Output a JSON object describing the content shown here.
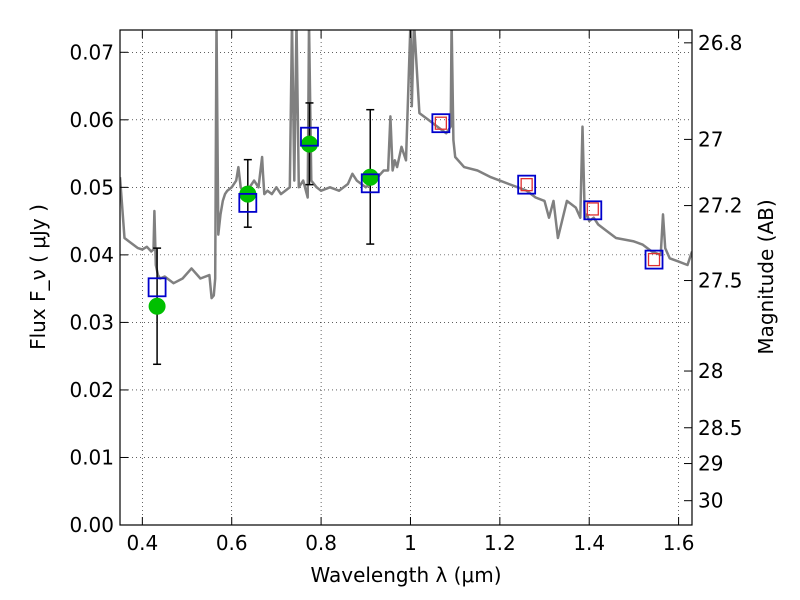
{
  "chart_data": {
    "type": "scatter",
    "xlabel": "Wavelength  λ (μm)",
    "ylabel": "Flux  F_ν  ( μJy )",
    "ylabel_right": "Magnitude (AB)",
    "xlim": [
      0.35,
      1.63
    ],
    "ylim": [
      0.0,
      0.0733
    ],
    "grid": true,
    "xticks": [
      0.4,
      0.6,
      0.8,
      1.0,
      1.2,
      1.4,
      1.6
    ],
    "xtick_labels": [
      "0.4",
      "0.6",
      "0.8",
      "1",
      "1.2",
      "1.4",
      "1.6"
    ],
    "yticks": [
      0.0,
      0.01,
      0.02,
      0.03,
      0.04,
      0.05,
      0.06,
      0.07
    ],
    "ytick_labels": [
      "0.00",
      "0.01",
      "0.02",
      "0.03",
      "0.04",
      "0.05",
      "0.06",
      "0.07"
    ],
    "right_ticks": [
      {
        "label": "26.8",
        "flux": 0.0714
      },
      {
        "label": "27",
        "flux": 0.0571
      },
      {
        "label": "27.2",
        "flux": 0.0473
      },
      {
        "label": "27.5",
        "flux": 0.0362
      },
      {
        "label": "28",
        "flux": 0.0228
      },
      {
        "label": "28.5",
        "flux": 0.0144
      },
      {
        "label": "29",
        "flux": 0.0091
      },
      {
        "label": "30",
        "flux": 0.0036
      }
    ],
    "series": [
      {
        "kind": "line",
        "color": "#808080",
        "x": [
          0.35,
          0.36,
          0.37,
          0.38,
          0.39,
          0.4,
          0.41,
          0.42,
          0.425,
          0.427,
          0.43,
          0.435,
          0.44,
          0.45,
          0.47,
          0.49,
          0.51,
          0.53,
          0.55,
          0.555,
          0.56,
          0.563,
          0.566,
          0.57,
          0.575,
          0.58,
          0.585,
          0.59,
          0.6,
          0.61,
          0.615,
          0.62,
          0.63,
          0.64,
          0.65,
          0.66,
          0.668,
          0.67,
          0.673,
          0.68,
          0.69,
          0.7,
          0.71,
          0.72,
          0.73,
          0.735,
          0.74,
          0.745,
          0.75,
          0.76,
          0.77,
          0.773,
          0.778,
          0.79,
          0.8,
          0.82,
          0.84,
          0.86,
          0.87,
          0.88,
          0.9,
          0.92,
          0.94,
          0.95,
          0.955,
          0.96,
          0.965,
          0.97,
          0.98,
          0.99,
          1.0,
          1.003,
          1.008,
          1.02,
          1.04,
          1.06,
          1.08,
          1.09,
          1.092,
          1.096,
          1.1,
          1.12,
          1.15,
          1.18,
          1.2,
          1.22,
          1.24,
          1.26,
          1.28,
          1.3,
          1.31,
          1.32,
          1.33,
          1.35,
          1.37,
          1.38,
          1.385,
          1.39,
          1.395,
          1.4,
          1.41,
          1.42,
          1.43,
          1.46,
          1.5,
          1.52,
          1.54,
          1.56,
          1.565,
          1.57,
          1.58,
          1.6,
          1.62,
          1.63
        ],
        "y": [
          0.0515,
          0.0425,
          0.042,
          0.0415,
          0.041,
          0.0408,
          0.0412,
          0.0405,
          0.0408,
          0.0465,
          0.0385,
          0.037,
          0.0365,
          0.0368,
          0.0358,
          0.0365,
          0.038,
          0.0365,
          0.037,
          0.0336,
          0.034,
          0.0365,
          0.0745,
          0.043,
          0.046,
          0.048,
          0.049,
          0.0495,
          0.05,
          0.051,
          0.053,
          0.05,
          0.049,
          0.05,
          0.051,
          0.05,
          0.0545,
          0.052,
          0.049,
          0.0495,
          0.049,
          0.05,
          0.049,
          0.0495,
          0.05,
          0.0745,
          0.051,
          0.0745,
          0.05,
          0.051,
          0.0485,
          0.0745,
          0.051,
          0.05,
          0.0495,
          0.05,
          0.0495,
          0.0505,
          0.052,
          0.051,
          0.05,
          0.051,
          0.0525,
          0.0525,
          0.0605,
          0.0525,
          0.054,
          0.053,
          0.056,
          0.054,
          0.0745,
          0.062,
          0.0745,
          0.061,
          0.06,
          0.059,
          0.058,
          0.059,
          0.0745,
          0.057,
          0.0545,
          0.053,
          0.0525,
          0.0515,
          0.051,
          0.0505,
          0.05,
          0.0495,
          0.0485,
          0.048,
          0.0455,
          0.048,
          0.0425,
          0.048,
          0.047,
          0.0455,
          0.059,
          0.0455,
          0.046,
          0.045,
          0.0455,
          0.0445,
          0.044,
          0.0425,
          0.042,
          0.0415,
          0.0405,
          0.04,
          0.046,
          0.041,
          0.0395,
          0.039,
          0.0385,
          0.0405
        ]
      },
      {
        "kind": "errorbar",
        "color": "#000000",
        "x": [
          0.433,
          0.636,
          0.774,
          0.91
        ],
        "y": [
          0.0324,
          0.049,
          0.0564,
          0.0515
        ],
        "yerr_low": [
          0.0238,
          0.0441,
          0.0504,
          0.0416
        ],
        "yerr_high": [
          0.041,
          0.0541,
          0.0625,
          0.0615
        ]
      },
      {
        "kind": "points",
        "marker": "circle",
        "color": "#00c000",
        "x": [
          0.433,
          0.636,
          0.774,
          0.91
        ],
        "y": [
          0.0324,
          0.049,
          0.0564,
          0.0515
        ]
      },
      {
        "kind": "points",
        "marker": "square-blue",
        "color": "#0000cc",
        "x": [
          0.433,
          0.636,
          0.774,
          0.91,
          1.068,
          1.26,
          1.408,
          1.545
        ],
        "y": [
          0.0352,
          0.0477,
          0.0575,
          0.0506,
          0.0595,
          0.0504,
          0.0466,
          0.0393
        ]
      },
      {
        "kind": "points",
        "marker": "square-red",
        "color": "#e03030",
        "x": [
          1.068,
          1.26,
          1.408,
          1.545
        ],
        "y": [
          0.0595,
          0.0504,
          0.0468,
          0.0393
        ]
      }
    ]
  }
}
